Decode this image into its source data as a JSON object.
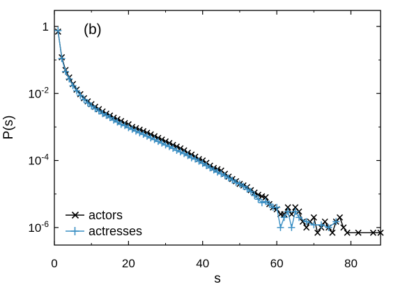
{
  "chart_data": {
    "type": "line",
    "title": "",
    "panel_label": "(b)",
    "xlabel": "s",
    "ylabel": "P(s)",
    "xlim": [
      0,
      88
    ],
    "ylim": [
      3e-07,
      3
    ],
    "yscale": "log",
    "grid": false,
    "legend_position": "bottom-left",
    "x_ticks": [
      0,
      20,
      40,
      60,
      80
    ],
    "x_tick_labels": [
      "0",
      "20",
      "40",
      "60",
      "80"
    ],
    "y_ticks": [
      1,
      0.01,
      0.0001,
      1e-06
    ],
    "y_tick_labels": [
      {
        "base": "1",
        "exp": ""
      },
      {
        "base": "10",
        "exp": "-2"
      },
      {
        "base": "10",
        "exp": "-4"
      },
      {
        "base": "10",
        "exp": "-6"
      }
    ],
    "series": [
      {
        "name": "actors",
        "color": "#000000",
        "marker": "x",
        "points": [
          [
            1,
            0.7
          ],
          [
            2,
            0.12
          ],
          [
            3,
            0.05
          ],
          [
            4,
            0.03
          ],
          [
            5,
            0.019
          ],
          [
            6,
            0.013
          ],
          [
            7,
            0.0095
          ],
          [
            8,
            0.0072
          ],
          [
            9,
            0.0058
          ],
          [
            10,
            0.0048
          ],
          [
            11,
            0.004
          ],
          [
            12,
            0.0034
          ],
          [
            13,
            0.0029
          ],
          [
            14,
            0.0025
          ],
          [
            15,
            0.0022
          ],
          [
            16,
            0.0019
          ],
          [
            17,
            0.0017
          ],
          [
            18,
            0.0015
          ],
          [
            19,
            0.0013
          ],
          [
            20,
            0.0012
          ],
          [
            21,
            0.001
          ],
          [
            22,
            0.00092
          ],
          [
            23,
            0.00083
          ],
          [
            24,
            0.00075
          ],
          [
            25,
            0.00067
          ],
          [
            26,
            0.0006
          ],
          [
            27,
            0.00053
          ],
          [
            28,
            0.00047
          ],
          [
            29,
            0.00042
          ],
          [
            30,
            0.00037
          ],
          [
            31,
            0.00033
          ],
          [
            32,
            0.00029
          ],
          [
            33,
            0.00026
          ],
          [
            34,
            0.00023
          ],
          [
            35,
            0.0002
          ],
          [
            36,
            0.00017
          ],
          [
            37,
            0.00015
          ],
          [
            38,
            0.00013
          ],
          [
            39,
            0.00011
          ],
          [
            40,
            0.0001
          ],
          [
            41,
            8.5e-05
          ],
          [
            42,
            7e-05
          ],
          [
            43,
            6e-05
          ],
          [
            44,
            5.5e-05
          ],
          [
            45,
            5e-05
          ],
          [
            46,
            4e-05
          ],
          [
            47,
            3.3e-05
          ],
          [
            48,
            2.8e-05
          ],
          [
            49,
            2.4e-05
          ],
          [
            50,
            2e-05
          ],
          [
            51,
            1.8e-05
          ],
          [
            52,
            1.6e-05
          ],
          [
            53,
            1.3e-05
          ],
          [
            54,
            1.1e-05
          ],
          [
            55,
            9.5e-06
          ],
          [
            56,
            8.5e-06
          ],
          [
            57,
            8e-06
          ],
          [
            58,
            5e-06
          ],
          [
            59,
            4e-06
          ],
          [
            60,
            3.5e-06
          ],
          [
            61,
            2.5e-06
          ],
          [
            62,
            2.5e-06
          ],
          [
            63,
            4e-06
          ],
          [
            64,
            2.5e-06
          ],
          [
            65,
            4e-06
          ],
          [
            66,
            3e-06
          ],
          [
            67,
            1.5e-06
          ],
          [
            68,
            1e-06
          ],
          [
            69,
            1.5e-06
          ],
          [
            70,
            2e-06
          ],
          [
            71,
            7e-07
          ],
          [
            72,
            1e-06
          ],
          [
            73,
            1.5e-06
          ],
          [
            74,
            1e-06
          ],
          [
            75,
            7e-07
          ],
          [
            76,
            1.5e-06
          ],
          [
            77,
            2e-06
          ],
          [
            78,
            1e-06
          ],
          [
            79,
            7e-07
          ],
          [
            82,
            7e-07
          ],
          [
            86,
            7e-07
          ],
          [
            88,
            7e-07
          ]
        ]
      },
      {
        "name": "actresses",
        "color": "#3a8fc4",
        "marker": "+",
        "points": [
          [
            1,
            0.75
          ],
          [
            2,
            0.11
          ],
          [
            3,
            0.045
          ],
          [
            4,
            0.027
          ],
          [
            5,
            0.017
          ],
          [
            6,
            0.012
          ],
          [
            7,
            0.0088
          ],
          [
            8,
            0.0066
          ],
          [
            9,
            0.0052
          ],
          [
            10,
            0.0042
          ],
          [
            11,
            0.0035
          ],
          [
            12,
            0.003
          ],
          [
            13,
            0.0025
          ],
          [
            14,
            0.0022
          ],
          [
            15,
            0.0019
          ],
          [
            16,
            0.0016
          ],
          [
            17,
            0.0014
          ],
          [
            18,
            0.0012
          ],
          [
            19,
            0.0011
          ],
          [
            20,
            0.00095
          ],
          [
            21,
            0.00085
          ],
          [
            22,
            0.00075
          ],
          [
            23,
            0.00067
          ],
          [
            24,
            0.0006
          ],
          [
            25,
            0.00053
          ],
          [
            26,
            0.00047
          ],
          [
            27,
            0.00042
          ],
          [
            28,
            0.00037
          ],
          [
            29,
            0.00033
          ],
          [
            30,
            0.00029
          ],
          [
            31,
            0.00026
          ],
          [
            32,
            0.00023
          ],
          [
            33,
            0.0002
          ],
          [
            34,
            0.00018
          ],
          [
            35,
            0.00016
          ],
          [
            36,
            0.00014
          ],
          [
            37,
            0.00012
          ],
          [
            38,
            0.00011
          ],
          [
            39,
            9.5e-05
          ],
          [
            40,
            8.2e-05
          ],
          [
            41,
            7e-05
          ],
          [
            42,
            6e-05
          ],
          [
            43,
            5.2e-05
          ],
          [
            44,
            4.5e-05
          ],
          [
            45,
            4e-05
          ],
          [
            46,
            3.5e-05
          ],
          [
            47,
            3e-05
          ],
          [
            48,
            2.6e-05
          ],
          [
            49,
            2.2e-05
          ],
          [
            50,
            2e-05
          ],
          [
            51,
            1.7e-05
          ],
          [
            52,
            1.4e-05
          ],
          [
            53,
            1.2e-05
          ],
          [
            54,
            9e-06
          ],
          [
            55,
            7e-06
          ],
          [
            56,
            5.5e-06
          ],
          [
            57,
            6e-06
          ],
          [
            58,
            5e-06
          ],
          [
            59,
            4e-06
          ],
          [
            60,
            4e-06
          ],
          [
            61,
            1e-06
          ],
          [
            62,
            2e-06
          ],
          [
            63,
            3e-06
          ],
          [
            64,
            1e-06
          ],
          [
            65,
            3e-06
          ],
          [
            66,
            2e-06
          ],
          [
            68,
            1.5e-06
          ],
          [
            70,
            1.2e-06
          ],
          [
            72,
            1.2e-06
          ],
          [
            74,
            1e-06
          ],
          [
            76,
            1.5e-06
          ]
        ]
      }
    ]
  }
}
